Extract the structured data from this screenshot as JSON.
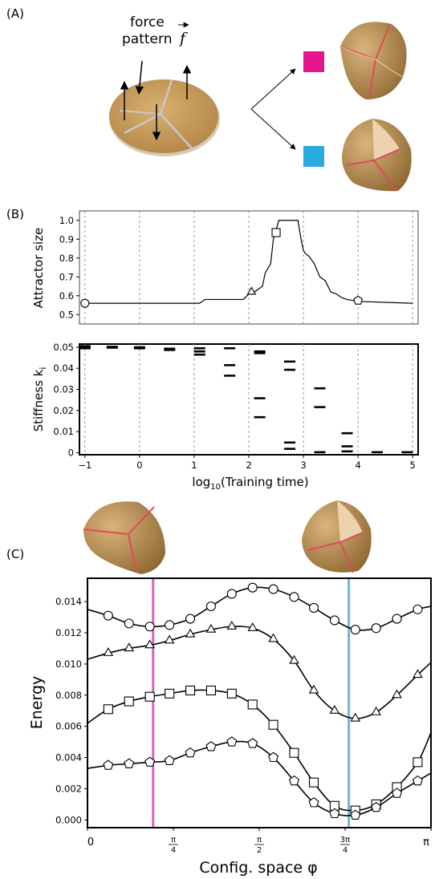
{
  "panels": {
    "a": "(A)",
    "b": "(B)",
    "c": "(C)"
  },
  "annotation": {
    "line1": "force",
    "line2": "pattern",
    "symbol": "f"
  },
  "colors": {
    "magenta": "#e8168c",
    "cyan": "#29aae1",
    "magenta_line": "#e060c0",
    "cyan_line": "#6ab7dc",
    "disk": "#c9a162",
    "disk_dark": "#a57a3e"
  },
  "chart_data": [
    {
      "type": "line",
      "ylabel": "Attractor size",
      "xlim": [
        -1.1,
        5.1
      ],
      "ylim": [
        0.45,
        1.05
      ],
      "xticks": [
        -1,
        0,
        1,
        2,
        3,
        4,
        5
      ],
      "yticks": [
        0.5,
        0.6,
        0.7,
        0.8,
        0.9,
        1.0
      ],
      "ytick_labels": [
        "0.5",
        "0.6",
        "0.7",
        "0.8",
        "0.9",
        "1.0"
      ],
      "x": [
        -1.0,
        1.1,
        1.2,
        1.9,
        2.0,
        2.1,
        2.25,
        2.3,
        2.4,
        2.45,
        2.55,
        2.6,
        2.8,
        2.9,
        2.95,
        3.0,
        3.05,
        3.1,
        3.2,
        3.3,
        3.4,
        3.5,
        3.6,
        3.7,
        3.8,
        4.0,
        5.0
      ],
      "y": [
        0.56,
        0.56,
        0.58,
        0.58,
        0.61,
        0.62,
        0.65,
        0.72,
        0.77,
        0.9,
        1.0,
        1.0,
        1.0,
        1.0,
        0.91,
        0.84,
        0.82,
        0.81,
        0.77,
        0.7,
        0.68,
        0.62,
        0.61,
        0.59,
        0.58,
        0.57,
        0.56
      ],
      "markers": [
        {
          "shape": "circle",
          "x": -1.0,
          "y": 0.56
        },
        {
          "shape": "triangle",
          "x": 2.05,
          "y": 0.62
        },
        {
          "shape": "square",
          "x": 2.5,
          "y": 0.935
        },
        {
          "shape": "pentagon",
          "x": 4.0,
          "y": 0.575
        }
      ]
    },
    {
      "type": "scatter",
      "ylabel": "Stiffness k",
      "ylabel_sub": "i",
      "xlabel_prefix": "log",
      "xlabel_sub": "10",
      "xlabel_suffix": "(Training time)",
      "xlim": [
        -1.1,
        5.1
      ],
      "ylim": [
        -0.001,
        0.0515
      ],
      "xticks": [
        -1,
        0,
        1,
        2,
        3,
        4,
        5
      ],
      "xtick_labels": [
        "−1",
        "0",
        "1",
        "2",
        "3",
        "4",
        "5"
      ],
      "yticks": [
        0,
        0.01,
        0.02,
        0.03,
        0.04,
        0.05
      ],
      "ytick_labels": [
        "0",
        "0.01",
        "0.02",
        "0.03",
        "0.04",
        "0.05"
      ],
      "groups": [
        {
          "x": -1.0,
          "values": [
            0.0505,
            0.05,
            0.0495
          ]
        },
        {
          "x": -0.5,
          "values": [
            0.0502,
            0.0498
          ]
        },
        {
          "x": 0.0,
          "values": [
            0.05,
            0.0495
          ]
        },
        {
          "x": 0.55,
          "values": [
            0.0493,
            0.0487
          ]
        },
        {
          "x": 1.1,
          "values": [
            0.0495,
            0.048,
            0.0465
          ]
        },
        {
          "x": 1.65,
          "values": [
            0.0495,
            0.0415,
            0.0365
          ]
        },
        {
          "x": 2.2,
          "values": [
            0.048,
            0.0472,
            0.0258,
            0.0168
          ]
        },
        {
          "x": 2.75,
          "values": [
            0.0432,
            0.0393,
            0.0048,
            0.0018
          ]
        },
        {
          "x": 3.3,
          "values": [
            0.0305,
            0.0216,
            0.0002
          ]
        },
        {
          "x": 3.8,
          "values": [
            0.0092,
            0.003,
            0.0006
          ]
        },
        {
          "x": 4.35,
          "values": [
            0.0002
          ]
        },
        {
          "x": 4.9,
          "values": [
            0.0002
          ]
        }
      ]
    },
    {
      "type": "line",
      "ylabel": "Energy",
      "xlabel": "Config. space φ",
      "xlim": [
        0,
        3.1416
      ],
      "ylim": [
        -0.0005,
        0.0155
      ],
      "xticks": [
        0,
        0.7854,
        1.5708,
        2.3562,
        3.1416
      ],
      "xtick_labels": [
        "0",
        "π/4",
        "π/2",
        "3π/4",
        "π"
      ],
      "yticks": [
        0,
        0.002,
        0.004,
        0.006,
        0.008,
        0.01,
        0.012,
        0.014
      ],
      "ytick_labels": [
        "0.000",
        "0.002",
        "0.004",
        "0.006",
        "0.008",
        "0.010",
        "0.012",
        "0.014"
      ],
      "vlines": [
        {
          "x": 0.6,
          "color": "#e060c0"
        },
        {
          "x": 2.39,
          "color": "#6ab7dc"
        }
      ],
      "series": [
        {
          "marker": "circle",
          "x": [
            0,
            0.19,
            0.38,
            0.57,
            0.75,
            0.94,
            1.13,
            1.32,
            1.51,
            1.7,
            1.89,
            2.07,
            2.26,
            2.45,
            2.64,
            2.83,
            3.02,
            3.1416
          ],
          "y": [
            0.0135,
            0.0131,
            0.0126,
            0.0124,
            0.0125,
            0.0129,
            0.0137,
            0.0145,
            0.0149,
            0.0148,
            0.0143,
            0.0136,
            0.0128,
            0.0122,
            0.0123,
            0.0129,
            0.0135,
            0.0137
          ]
        },
        {
          "marker": "triangle",
          "x": [
            0,
            0.19,
            0.38,
            0.57,
            0.75,
            0.94,
            1.13,
            1.32,
            1.51,
            1.7,
            1.89,
            2.07,
            2.26,
            2.45,
            2.64,
            2.83,
            3.02,
            3.1416
          ],
          "y": [
            0.0103,
            0.0107,
            0.011,
            0.0112,
            0.0115,
            0.0119,
            0.0122,
            0.0124,
            0.0123,
            0.0116,
            0.0102,
            0.0083,
            0.007,
            0.0065,
            0.0069,
            0.008,
            0.0093,
            0.0101
          ]
        },
        {
          "marker": "square",
          "x": [
            0,
            0.19,
            0.38,
            0.57,
            0.75,
            0.94,
            1.13,
            1.32,
            1.51,
            1.7,
            1.89,
            2.07,
            2.26,
            2.45,
            2.64,
            2.83,
            3.02,
            3.1416
          ],
          "y": [
            0.0062,
            0.0071,
            0.0076,
            0.0079,
            0.0081,
            0.0083,
            0.0083,
            0.0081,
            0.0074,
            0.0061,
            0.0043,
            0.0024,
            0.0009,
            0.0006,
            0.001,
            0.0021,
            0.0037,
            0.0056
          ]
        },
        {
          "marker": "pentagon",
          "x": [
            0,
            0.19,
            0.38,
            0.57,
            0.75,
            0.94,
            1.13,
            1.32,
            1.51,
            1.7,
            1.89,
            2.07,
            2.26,
            2.45,
            2.64,
            2.83,
            3.02,
            3.1416
          ],
          "y": [
            0.0033,
            0.0035,
            0.0036,
            0.0037,
            0.0038,
            0.0043,
            0.0047,
            0.005,
            0.0049,
            0.004,
            0.0025,
            0.0011,
            0.0004,
            0.0003,
            0.0008,
            0.0017,
            0.0025,
            0.003
          ]
        }
      ]
    }
  ]
}
